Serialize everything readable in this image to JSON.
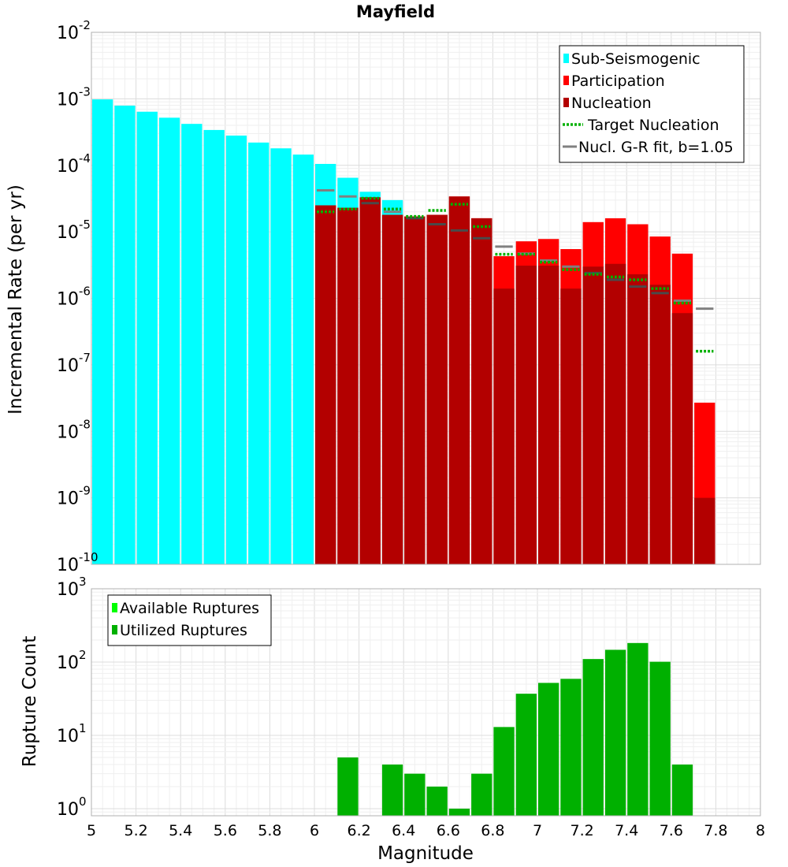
{
  "chart_data": [
    {
      "type": "bar",
      "title": "Mayfield",
      "xlabel": "",
      "ylabel": "Incremental Rate (per yr)",
      "yscale": "log",
      "xlim": [
        5,
        8
      ],
      "ylim": [
        1e-10,
        0.01
      ],
      "grid": true,
      "bin_width": 0.1,
      "y_ticks": [
        {
          "base": "10",
          "exp": "-2",
          "value": 0.01
        },
        {
          "base": "10",
          "exp": "-3",
          "value": 0.001
        },
        {
          "base": "10",
          "exp": "-4",
          "value": 0.0001
        },
        {
          "base": "10",
          "exp": "-5",
          "value": 1e-05
        },
        {
          "base": "10",
          "exp": "-6",
          "value": 1e-06
        },
        {
          "base": "10",
          "exp": "-7",
          "value": 1e-07
        },
        {
          "base": "10",
          "exp": "-8",
          "value": 1e-08
        },
        {
          "base": "10",
          "exp": "-9",
          "value": 1e-09
        },
        {
          "base": "10",
          "exp": "-10",
          "value": 1e-10
        }
      ],
      "legend": {
        "placement": "top-right",
        "entries": [
          {
            "label": "Sub-Seismogenic",
            "color": "#00ffff",
            "style": "box"
          },
          {
            "label": "Participation",
            "color": "#ff0000",
            "style": "box"
          },
          {
            "label": "Nucleation",
            "color": "#b30000",
            "style": "box"
          },
          {
            "label": "Target Nucleation",
            "color": "#00b000",
            "style": "dotted"
          },
          {
            "label": "Nucl. G-R fit, b=1.05",
            "color": "#808080",
            "style": "line"
          }
        ]
      },
      "sub_seismogenic": {
        "color": "#00ffff",
        "x": [
          5.05,
          5.15,
          5.25,
          5.35,
          5.45,
          5.55,
          5.65,
          5.75,
          5.85,
          5.95,
          6.05,
          6.15,
          6.25,
          6.35
        ],
        "values": [
          0.00098,
          0.00079,
          0.00064,
          0.00052,
          0.00042,
          0.00034,
          0.00028,
          0.00022,
          0.00018,
          0.000145,
          0.000105,
          6.5e-05,
          4e-05,
          3e-05
        ]
      },
      "participation": {
        "color": "#ff0000",
        "x": [
          6.05,
          6.15,
          6.25,
          6.35,
          6.45,
          6.55,
          6.65,
          6.75,
          6.85,
          6.95,
          7.05,
          7.15,
          7.25,
          7.35,
          7.45,
          7.55,
          7.65,
          7.75
        ],
        "values": [
          2.5e-05,
          2.3e-05,
          3.3e-05,
          1.8e-05,
          1.7e-05,
          1.8e-05,
          3.4e-05,
          1.6e-05,
          4.3e-06,
          7.2e-06,
          7.8e-06,
          5.5e-06,
          1.4e-05,
          1.6e-05,
          1.3e-05,
          8.5e-06,
          4.7e-06,
          2.7e-08
        ]
      },
      "nucleation": {
        "color": "#b30000",
        "x": [
          6.05,
          6.15,
          6.25,
          6.35,
          6.45,
          6.55,
          6.65,
          6.75,
          6.85,
          6.95,
          7.05,
          7.15,
          7.25,
          7.35,
          7.45,
          7.55,
          7.65,
          7.75
        ],
        "values": [
          2.5e-05,
          2.3e-05,
          3.3e-05,
          1.8e-05,
          1.7e-05,
          1.8e-05,
          3.4e-05,
          1.6e-05,
          1.4e-06,
          3.1e-06,
          3.1e-06,
          1.4e-06,
          3e-06,
          3.3e-06,
          2.3e-06,
          1.6e-06,
          6e-07,
          1e-09
        ]
      },
      "target_nucleation": {
        "color": "#00b000",
        "x": [
          6.05,
          6.15,
          6.25,
          6.35,
          6.45,
          6.55,
          6.65,
          6.75,
          6.85,
          6.95,
          7.05,
          7.15,
          7.25,
          7.35,
          7.45,
          7.55,
          7.65,
          7.75
        ],
        "values": [
          2e-05,
          2.2e-05,
          3.2e-05,
          2.2e-05,
          1.7e-05,
          2.1e-05,
          2.6e-05,
          1.2e-05,
          4.6e-06,
          4.6e-06,
          3.5e-06,
          2.7e-06,
          2.3e-06,
          2.1e-06,
          1.9e-06,
          1.4e-06,
          8.5e-07,
          1.6e-07
        ]
      },
      "gr_fit": {
        "color": "#808080",
        "x": [
          6.05,
          6.15,
          6.25,
          6.35,
          6.45,
          6.55,
          6.65,
          6.75,
          6.85,
          6.95,
          7.05,
          7.15,
          7.25,
          7.35,
          7.45,
          7.55,
          7.65,
          7.75
        ],
        "values": [
          4.2e-05,
          3.4e-05,
          2.7e-05,
          2e-05,
          1.6e-05,
          1.3e-05,
          1.05e-05,
          8e-06,
          6e-06,
          4.7e-06,
          3.7e-06,
          3e-06,
          2.4e-06,
          1.9e-06,
          1.5e-06,
          1.2e-06,
          9.2e-07,
          7e-07
        ]
      }
    },
    {
      "type": "bar",
      "title": "",
      "xlabel": "Magnitude",
      "ylabel": "Rupture Count",
      "yscale": "log",
      "xlim": [
        5,
        8
      ],
      "ylim": [
        0.8,
        1000
      ],
      "grid": true,
      "bin_width": 0.1,
      "x_ticks": [
        "5",
        "5.2",
        "5.4",
        "5.6",
        "5.8",
        "6",
        "6.2",
        "6.4",
        "6.6",
        "6.8",
        "7",
        "7.2",
        "7.4",
        "7.6",
        "7.8",
        "8"
      ],
      "y_ticks": [
        {
          "base": "10",
          "exp": "3",
          "value": 1000
        },
        {
          "base": "10",
          "exp": "2",
          "value": 100
        },
        {
          "base": "10",
          "exp": "1",
          "value": 10
        },
        {
          "base": "10",
          "exp": "0",
          "value": 1
        }
      ],
      "legend": {
        "placement": "top-left",
        "entries": [
          {
            "label": "Available Ruptures",
            "color": "#00ff00",
            "style": "box"
          },
          {
            "label": "Utilized Ruptures",
            "color": "#00b000",
            "style": "box"
          }
        ]
      },
      "utilized": {
        "color": "#00b000",
        "x": [
          6.15,
          6.35,
          6.45,
          6.55,
          6.65,
          6.75,
          6.85,
          6.95,
          7.05,
          7.15,
          7.25,
          7.35,
          7.45,
          7.55,
          7.65
        ],
        "values": [
          5,
          4,
          3,
          2,
          1,
          3,
          13,
          37,
          52,
          59,
          110,
          147,
          182,
          101,
          4
        ]
      }
    }
  ]
}
